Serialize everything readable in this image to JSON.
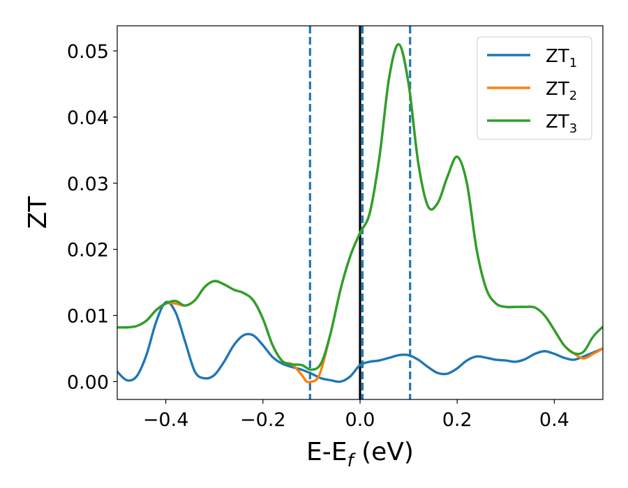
{
  "chart_data": {
    "type": "line",
    "xlabel": {
      "main": "E-E",
      "sub": "f",
      "suffix": " (eV)"
    },
    "ylabel": "ZT",
    "xlim": [
      -0.5,
      0.5
    ],
    "ylim": [
      -0.0027,
      0.0538
    ],
    "xticks": [
      -0.4,
      -0.2,
      0.0,
      0.2,
      0.4
    ],
    "xtick_labels": [
      "−0.4",
      "−0.2",
      "0.0",
      "0.2",
      "0.4"
    ],
    "yticks": [
      0.0,
      0.01,
      0.02,
      0.03,
      0.04,
      0.05
    ],
    "ytick_labels": [
      "0.00",
      "0.01",
      "0.02",
      "0.03",
      "0.04",
      "0.05"
    ],
    "grid": false,
    "legend_position": "top-right",
    "vlines": [
      {
        "x": -0.103,
        "style": "dashed",
        "color": "#1f77b4"
      },
      {
        "x": 0.0,
        "style": "solid",
        "color": "#000000"
      },
      {
        "x": 0.005,
        "style": "dashed",
        "color": "#1f77b4"
      },
      {
        "x": 0.103,
        "style": "dashed",
        "color": "#1f77b4"
      }
    ],
    "series": [
      {
        "name": "ZT",
        "sub": "1",
        "color": "#1f77b4",
        "x": [
          -0.5,
          -0.48,
          -0.46,
          -0.44,
          -0.42,
          -0.4,
          -0.38,
          -0.36,
          -0.34,
          -0.32,
          -0.3,
          -0.28,
          -0.26,
          -0.24,
          -0.22,
          -0.2,
          -0.18,
          -0.16,
          -0.14,
          -0.12,
          -0.1,
          -0.08,
          -0.06,
          -0.04,
          -0.02,
          0.0,
          0.02,
          0.04,
          0.06,
          0.08,
          0.1,
          0.12,
          0.14,
          0.16,
          0.18,
          0.2,
          0.22,
          0.24,
          0.26,
          0.28,
          0.3,
          0.32,
          0.34,
          0.36,
          0.38,
          0.4,
          0.42,
          0.44,
          0.46,
          0.48,
          0.5
        ],
        "y": [
          0.0015,
          0.0002,
          0.0008,
          0.004,
          0.009,
          0.012,
          0.0105,
          0.006,
          0.0015,
          0.0005,
          0.001,
          0.003,
          0.0055,
          0.007,
          0.007,
          0.0055,
          0.0037,
          0.0027,
          0.0022,
          0.0018,
          0.0012,
          0.0005,
          0.0002,
          0.0,
          0.0008,
          0.0025,
          0.003,
          0.0032,
          0.0036,
          0.004,
          0.004,
          0.0033,
          0.0022,
          0.0013,
          0.0012,
          0.002,
          0.0032,
          0.0038,
          0.0036,
          0.0033,
          0.0032,
          0.003,
          0.0034,
          0.0042,
          0.0046,
          0.0042,
          0.0036,
          0.0033,
          0.0038,
          0.0044,
          0.005
        ]
      },
      {
        "name": "ZT",
        "sub": "2",
        "color": "#ff7f0e",
        "x": [
          -0.5,
          -0.48,
          -0.46,
          -0.44,
          -0.42,
          -0.4,
          -0.38,
          -0.36,
          -0.34,
          -0.32,
          -0.3,
          -0.28,
          -0.26,
          -0.24,
          -0.22,
          -0.2,
          -0.18,
          -0.16,
          -0.14,
          -0.12,
          -0.11,
          -0.1,
          -0.09,
          -0.08,
          -0.06,
          -0.04,
          -0.02,
          0.0,
          0.02,
          0.04,
          0.06,
          0.08,
          0.1,
          0.12,
          0.14,
          0.16,
          0.18,
          0.2,
          0.22,
          0.24,
          0.26,
          0.28,
          0.3,
          0.32,
          0.34,
          0.36,
          0.38,
          0.4,
          0.42,
          0.44,
          0.46,
          0.48,
          0.5
        ],
        "y": [
          0.0082,
          0.0082,
          0.0084,
          0.0092,
          0.0108,
          0.0118,
          0.0118,
          0.0115,
          0.0123,
          0.0143,
          0.0152,
          0.0147,
          0.0139,
          0.0134,
          0.0123,
          0.0095,
          0.0055,
          0.0031,
          0.0026,
          0.001,
          0.0,
          0.0,
          0.0003,
          0.0018,
          0.0075,
          0.014,
          0.019,
          0.0225,
          0.0255,
          0.034,
          0.046,
          0.051,
          0.045,
          0.033,
          0.0265,
          0.027,
          0.031,
          0.034,
          0.03,
          0.02,
          0.014,
          0.0118,
          0.0113,
          0.0113,
          0.0113,
          0.0112,
          0.01,
          0.0078,
          0.0055,
          0.0043,
          0.0035,
          0.0042,
          0.005
        ]
      },
      {
        "name": "ZT",
        "sub": "3",
        "color": "#2ca02c",
        "x": [
          -0.5,
          -0.48,
          -0.46,
          -0.44,
          -0.42,
          -0.4,
          -0.38,
          -0.36,
          -0.34,
          -0.32,
          -0.3,
          -0.28,
          -0.26,
          -0.24,
          -0.22,
          -0.2,
          -0.18,
          -0.16,
          -0.14,
          -0.12,
          -0.1,
          -0.08,
          -0.06,
          -0.04,
          -0.02,
          0.0,
          0.02,
          0.04,
          0.06,
          0.08,
          0.1,
          0.12,
          0.14,
          0.16,
          0.18,
          0.2,
          0.22,
          0.24,
          0.26,
          0.28,
          0.3,
          0.32,
          0.34,
          0.36,
          0.38,
          0.4,
          0.42,
          0.44,
          0.46,
          0.48,
          0.5
        ],
        "y": [
          0.0082,
          0.0082,
          0.0084,
          0.0092,
          0.0108,
          0.0118,
          0.0122,
          0.0115,
          0.0123,
          0.0143,
          0.0152,
          0.0147,
          0.0139,
          0.0134,
          0.0123,
          0.0095,
          0.0055,
          0.0031,
          0.0026,
          0.0025,
          0.0018,
          0.0028,
          0.0075,
          0.014,
          0.019,
          0.0225,
          0.0255,
          0.034,
          0.046,
          0.051,
          0.045,
          0.033,
          0.0265,
          0.027,
          0.031,
          0.034,
          0.03,
          0.02,
          0.014,
          0.0118,
          0.0113,
          0.0113,
          0.0113,
          0.0112,
          0.01,
          0.0078,
          0.0055,
          0.0043,
          0.0045,
          0.0068,
          0.0083
        ]
      }
    ]
  }
}
